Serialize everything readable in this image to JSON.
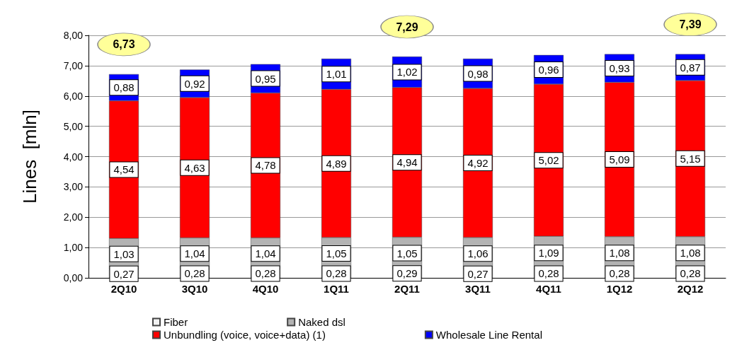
{
  "chart_data": {
    "type": "bar",
    "stacked": true,
    "ylabel": "Lines  [mln]",
    "categories": [
      "2Q10",
      "3Q10",
      "4Q10",
      "1Q11",
      "2Q11",
      "3Q11",
      "4Q11",
      "1Q12",
      "2Q12"
    ],
    "series": [
      {
        "name": "Fiber",
        "color": "#f2f2f2",
        "values": [
          0.27,
          0.28,
          0.28,
          0.28,
          0.29,
          0.27,
          0.28,
          0.28,
          0.28
        ],
        "value_labels": [
          "0,27",
          "0,28",
          "0,28",
          "0,28",
          "0,29",
          "0,27",
          "0,28",
          "0,28",
          "0,28"
        ]
      },
      {
        "name": "Naked dsl",
        "color": "#b3b3b3",
        "values": [
          1.03,
          1.04,
          1.04,
          1.05,
          1.05,
          1.06,
          1.09,
          1.08,
          1.08
        ],
        "value_labels": [
          "1,03",
          "1,04",
          "1,04",
          "1,05",
          "1,05",
          "1,06",
          "1,09",
          "1,08",
          "1,08"
        ]
      },
      {
        "name": "Unbundling (voice, voice+data) (1)",
        "color": "#ff0000",
        "values": [
          4.54,
          4.63,
          4.78,
          4.89,
          4.94,
          4.92,
          5.02,
          5.09,
          5.15
        ],
        "value_labels": [
          "4,54",
          "4,63",
          "4,78",
          "4,89",
          "4,94",
          "4,92",
          "5,02",
          "5,09",
          "5,15"
        ]
      },
      {
        "name": "Wholesale Line Rental",
        "color": "#0000ff",
        "values": [
          0.88,
          0.92,
          0.95,
          1.01,
          1.02,
          0.98,
          0.96,
          0.93,
          0.87
        ],
        "value_labels": [
          "0,88",
          "0,92",
          "0,95",
          "1,01",
          "1,02",
          "0,98",
          "0,96",
          "0,93",
          "0,87"
        ]
      }
    ],
    "totals": [
      "6,73",
      null,
      null,
      null,
      "7,29",
      null,
      null,
      null,
      "7,39"
    ],
    "ylim": [
      0,
      8
    ],
    "yticks": [
      {
        "value": 0,
        "label": "0,00"
      },
      {
        "value": 1,
        "label": "1,00"
      },
      {
        "value": 2,
        "label": "2,00"
      },
      {
        "value": 3,
        "label": "3,00"
      },
      {
        "value": 4,
        "label": "4,00"
      },
      {
        "value": 5,
        "label": "5,00"
      },
      {
        "value": 6,
        "label": "6,00"
      },
      {
        "value": 7,
        "label": "7,00"
      },
      {
        "value": 8,
        "label": "8,00"
      }
    ],
    "grid": "y",
    "legend": "bottom"
  }
}
